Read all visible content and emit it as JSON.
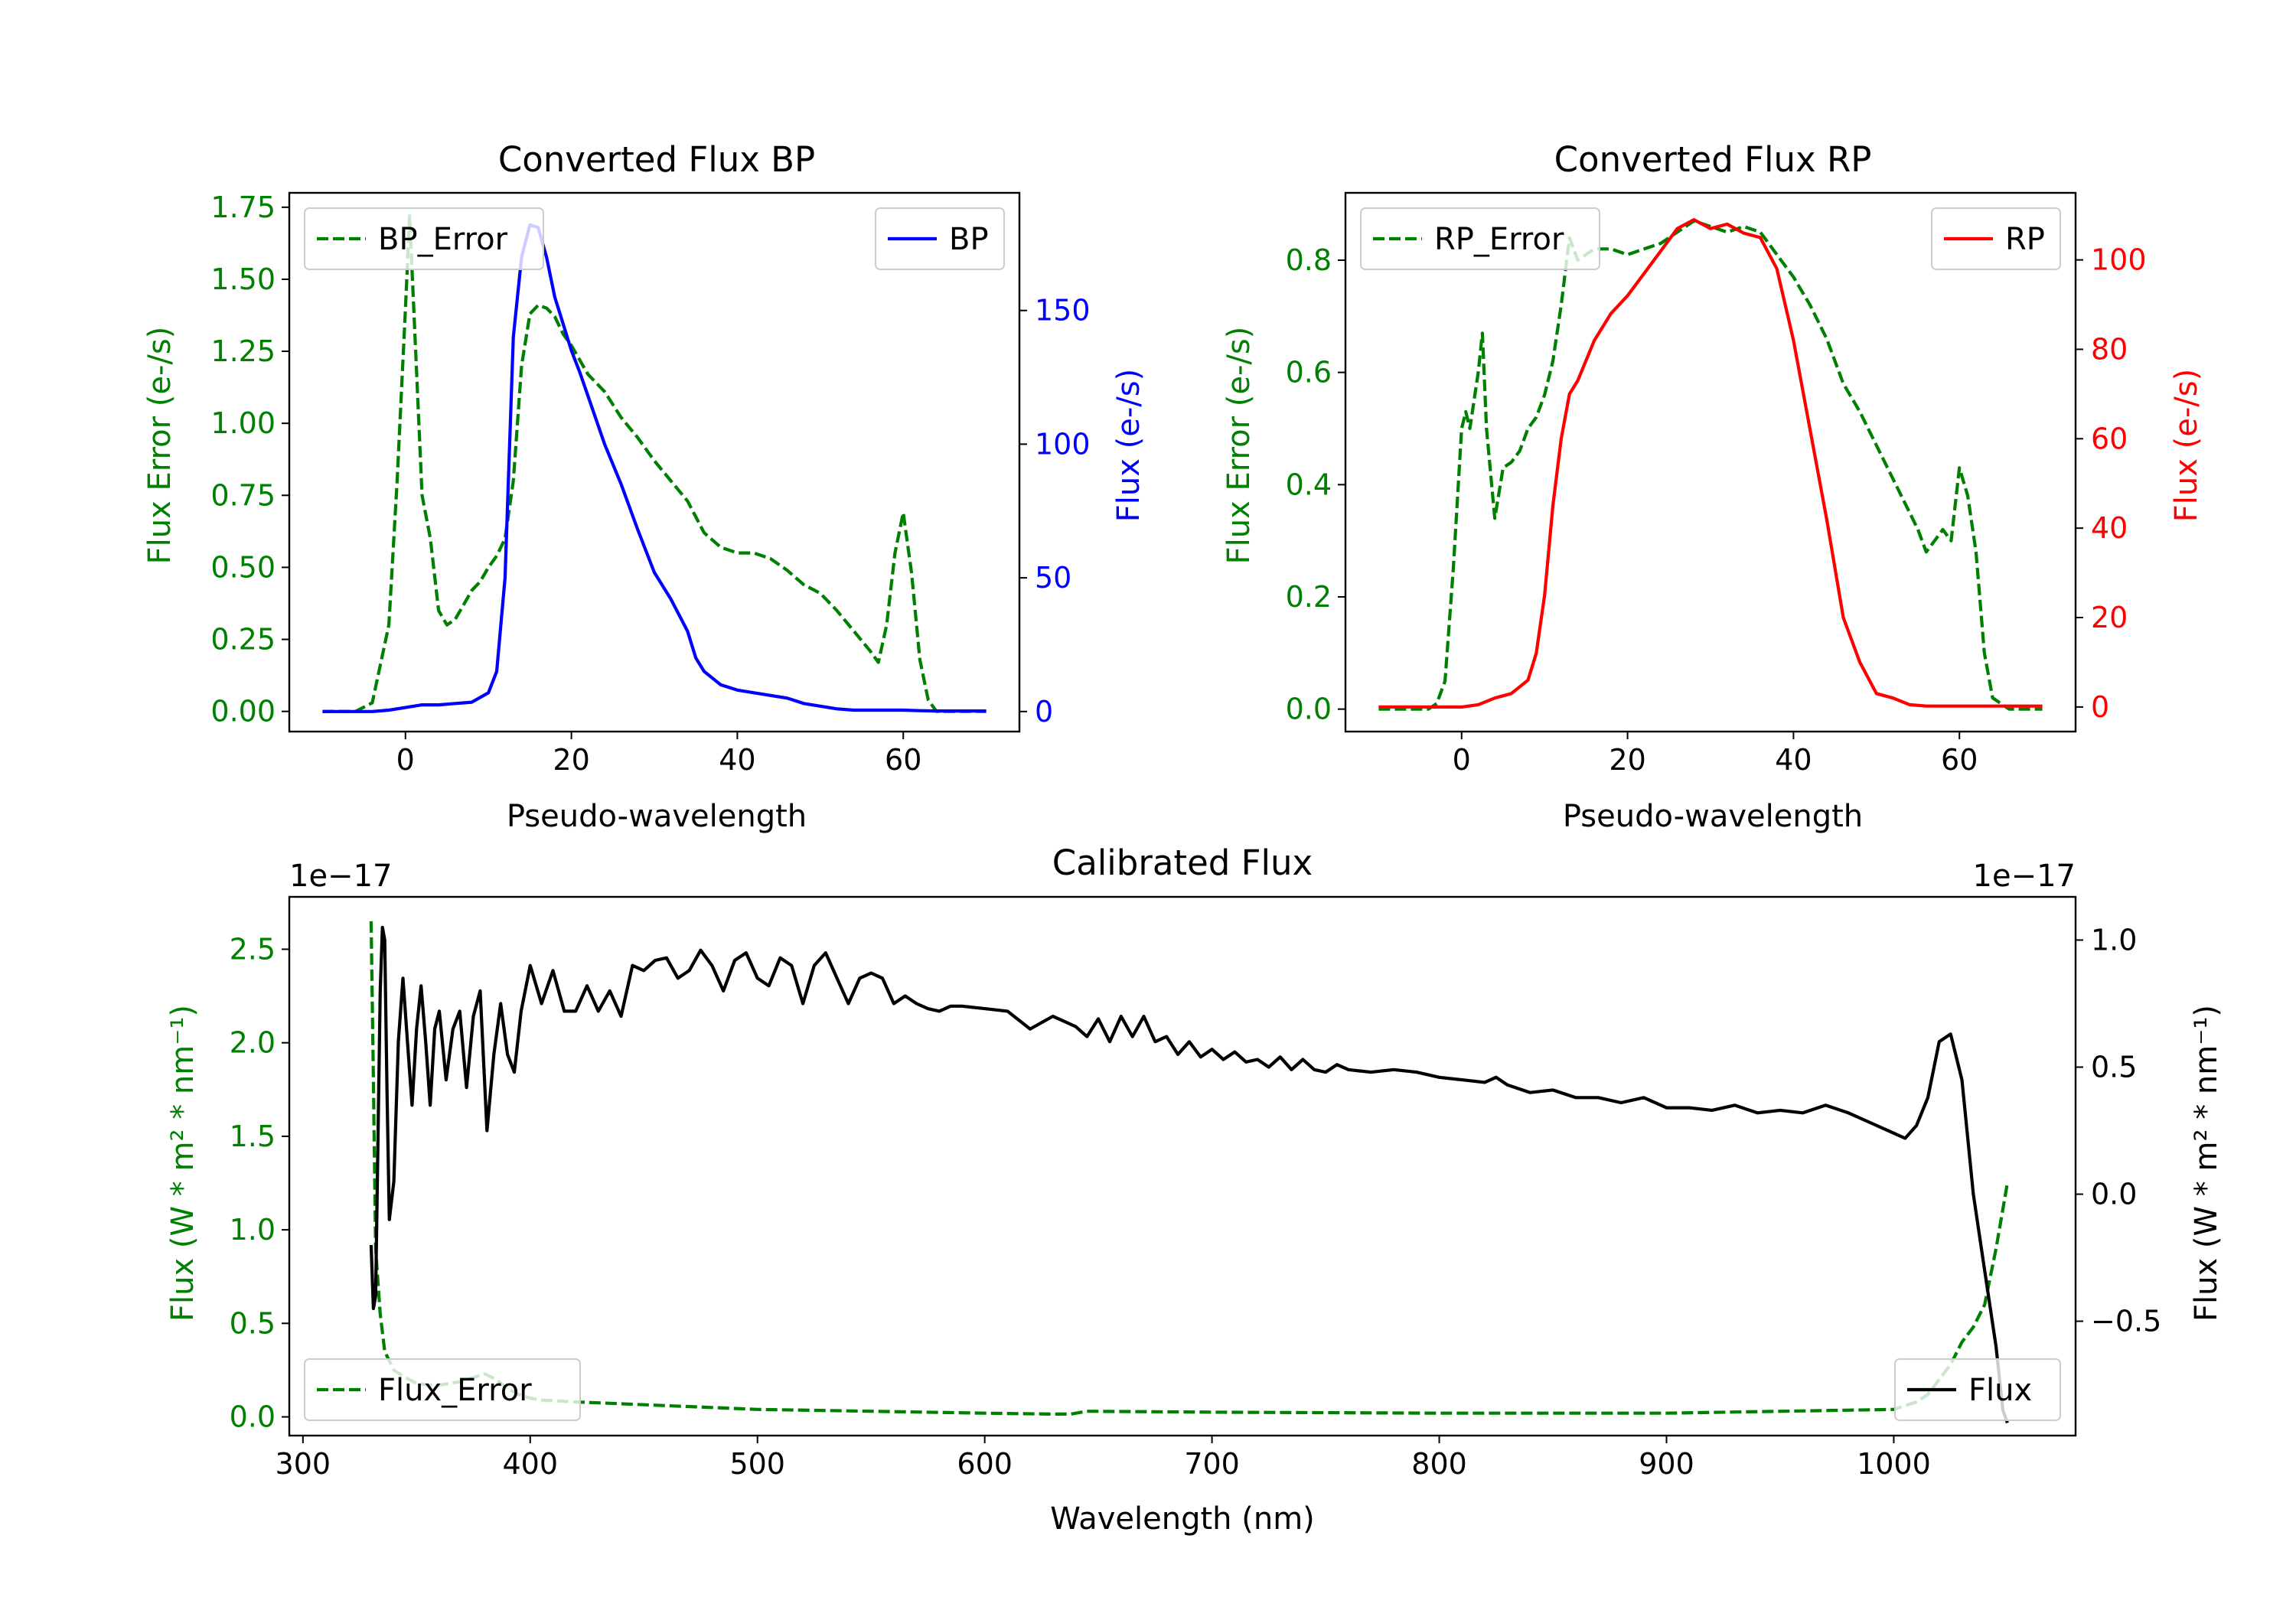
{
  "chart_data": [
    {
      "type": "line",
      "title": "Converted Flux BP",
      "xlabel": "Pseudo-wavelength",
      "ylabel_left": "Flux Error (e-/s)",
      "ylabel_right": "Flux (e-/s)",
      "xlim": [
        -14,
        74
      ],
      "ylim_left": [
        -0.07,
        1.8
      ],
      "ylim_right": [
        -7.5,
        194
      ],
      "xticks": [
        0,
        20,
        40,
        60
      ],
      "yticks_left": [
        "0.00",
        "0.25",
        "0.50",
        "0.75",
        "1.00",
        "1.25",
        "1.50",
        "1.75"
      ],
      "yticks_right": [
        "0",
        "50",
        "100",
        "150"
      ],
      "colors": {
        "left": "#008000",
        "right": "#0000ff"
      },
      "legend_left_position": "upper left",
      "legend_right_position": "upper right",
      "series": [
        {
          "name": "BP_Error",
          "axis": "left",
          "style": "dashed",
          "color": "#008000",
          "x": [
            -10,
            -6,
            -4,
            -2,
            -1,
            0,
            0.5,
            1,
            2,
            3,
            4,
            5,
            6,
            7,
            8,
            9,
            10,
            11,
            12,
            13,
            14,
            15,
            16,
            17,
            18,
            19,
            20,
            22,
            24,
            26,
            28,
            30,
            32,
            34,
            36,
            38,
            40,
            42,
            44,
            46,
            48,
            50,
            52,
            54,
            56,
            57,
            58,
            59,
            60,
            61,
            62,
            63,
            64,
            66,
            68,
            70
          ],
          "y": [
            0.0,
            0.0,
            0.03,
            0.3,
            0.8,
            1.4,
            1.72,
            1.4,
            0.75,
            0.6,
            0.35,
            0.3,
            0.32,
            0.37,
            0.42,
            0.45,
            0.5,
            0.54,
            0.6,
            0.8,
            1.2,
            1.38,
            1.41,
            1.4,
            1.37,
            1.31,
            1.27,
            1.17,
            1.11,
            1.02,
            0.95,
            0.87,
            0.8,
            0.73,
            0.62,
            0.57,
            0.55,
            0.55,
            0.53,
            0.49,
            0.44,
            0.41,
            0.35,
            0.28,
            0.21,
            0.17,
            0.3,
            0.55,
            0.69,
            0.48,
            0.18,
            0.04,
            0.0,
            0.0,
            0.0,
            0.0
          ]
        },
        {
          "name": "BP",
          "axis": "right",
          "style": "solid",
          "color": "#0000ff",
          "x": [
            -10,
            -6,
            -4,
            -2,
            0,
            2,
            4,
            6,
            8,
            10,
            11,
            12,
            13,
            14,
            15,
            16,
            17,
            18,
            19,
            20,
            21,
            22,
            24,
            26,
            28,
            30,
            32,
            34,
            35,
            36,
            38,
            40,
            42,
            44,
            46,
            48,
            50,
            52,
            54,
            56,
            58,
            60,
            62,
            64,
            66,
            68,
            70
          ],
          "y": [
            0,
            0,
            0,
            0.5,
            1.5,
            2.5,
            2.5,
            3.0,
            3.5,
            7,
            15,
            50,
            140,
            170,
            182,
            181,
            170,
            155,
            145,
            135,
            127,
            118,
            100,
            85,
            68,
            52,
            42,
            30,
            20,
            15,
            10,
            8,
            7,
            6,
            5,
            3,
            2,
            1,
            0.5,
            0.5,
            0.5,
            0.5,
            0.3,
            0.2,
            0.2,
            0.2,
            0.2
          ]
        }
      ],
      "legend": [
        "BP_Error",
        "BP"
      ]
    },
    {
      "type": "line",
      "title": "Converted Flux RP",
      "xlabel": "Pseudo-wavelength",
      "ylabel_left": "Flux Error (e-/s)",
      "ylabel_right": "Flux (e-/s)",
      "xlim": [
        -14,
        74
      ],
      "ylim_left": [
        -0.04,
        0.92
      ],
      "ylim_right": [
        -5.5,
        115
      ],
      "xticks": [
        0,
        20,
        40,
        60
      ],
      "yticks_left": [
        "0.0",
        "0.2",
        "0.4",
        "0.6",
        "0.8"
      ],
      "yticks_right": [
        "0",
        "20",
        "40",
        "60",
        "80",
        "100"
      ],
      "colors": {
        "left": "#008000",
        "right": "#ff0000"
      },
      "legend_left_position": "upper left",
      "legend_right_position": "upper right",
      "series": [
        {
          "name": "RP_Error",
          "axis": "left",
          "style": "dashed",
          "color": "#008000",
          "x": [
            -10,
            -5,
            -4,
            -3,
            -2,
            -1,
            0,
            0.5,
            1,
            1.5,
            2,
            2.5,
            3,
            4,
            5,
            6,
            7,
            8,
            9,
            10,
            11,
            12,
            13,
            14,
            16,
            18,
            20,
            22,
            24,
            26,
            28,
            30,
            32,
            34,
            36,
            38,
            40,
            42,
            44,
            46,
            48,
            50,
            52,
            54,
            55,
            56,
            57,
            58,
            59,
            60,
            61,
            62,
            63,
            64,
            66,
            68,
            70
          ],
          "y": [
            0,
            0,
            0.0,
            0.01,
            0.05,
            0.25,
            0.5,
            0.53,
            0.5,
            0.55,
            0.6,
            0.67,
            0.5,
            0.34,
            0.43,
            0.44,
            0.46,
            0.5,
            0.52,
            0.56,
            0.62,
            0.72,
            0.84,
            0.8,
            0.82,
            0.82,
            0.81,
            0.82,
            0.83,
            0.85,
            0.87,
            0.86,
            0.85,
            0.86,
            0.85,
            0.81,
            0.77,
            0.72,
            0.66,
            0.58,
            0.53,
            0.47,
            0.41,
            0.35,
            0.32,
            0.28,
            0.3,
            0.32,
            0.3,
            0.43,
            0.38,
            0.28,
            0.1,
            0.02,
            0.0,
            0.0,
            0.0
          ]
        },
        {
          "name": "RP",
          "axis": "right",
          "style": "solid",
          "color": "#ff0000",
          "x": [
            -10,
            -5,
            0,
            2,
            4,
            6,
            8,
            9,
            10,
            11,
            12,
            13,
            14,
            16,
            18,
            20,
            22,
            24,
            26,
            28,
            30,
            32,
            34,
            36,
            38,
            40,
            42,
            44,
            46,
            48,
            50,
            52,
            54,
            56,
            58,
            60,
            62,
            64,
            66,
            68,
            70
          ],
          "y": [
            0,
            0,
            0,
            0.5,
            2,
            3,
            6,
            12,
            25,
            45,
            60,
            70,
            73,
            82,
            88,
            92,
            97,
            102,
            107,
            109,
            107,
            108,
            106,
            105,
            98,
            82,
            62,
            42,
            20,
            10,
            3,
            2,
            0.5,
            0.2,
            0.2,
            0.2,
            0.2,
            0.2,
            0.2,
            0.2,
            0.2
          ]
        }
      ],
      "legend": [
        "RP_Error",
        "RP"
      ]
    },
    {
      "type": "line",
      "title": "Calibrated Flux",
      "xlabel": "Wavelength (nm)",
      "ylabel_left": "Flux (W * m² * nm⁻¹)",
      "ylabel_right": "Flux (W * m² * nm⁻¹)",
      "offset_left": "1e−17",
      "offset_right": "1e−17",
      "xlim": [
        294,
        1080
      ],
      "ylim_left": [
        -0.1,
        2.78
      ],
      "ylim_right": [
        -0.95,
        1.17
      ],
      "xticks": [
        300,
        400,
        500,
        600,
        700,
        800,
        900,
        1000
      ],
      "yticks_left": [
        "0.0",
        "0.5",
        "1.0",
        "1.5",
        "2.0",
        "2.5"
      ],
      "yticks_right": [
        "−0.5",
        "0.0",
        "0.5",
        "1.0"
      ],
      "colors": {
        "left": "#008000",
        "right": "#000000"
      },
      "legend_left_position": "lower left",
      "legend_right_position": "lower right",
      "series": [
        {
          "name": "Flux_Error",
          "axis": "left",
          "style": "dashed",
          "color": "#008000",
          "x": [
            330,
            331,
            332,
            334,
            336,
            340,
            345,
            350,
            355,
            360,
            365,
            370,
            375,
            380,
            385,
            390,
            395,
            400,
            405,
            420,
            440,
            460,
            480,
            500,
            550,
            600,
            630,
            638,
            645,
            700,
            800,
            900,
            1000,
            1005,
            1010,
            1015,
            1020,
            1025,
            1030,
            1035,
            1040,
            1045,
            1050
          ],
          "y": [
            2.65,
            1.8,
            0.9,
            0.55,
            0.35,
            0.25,
            0.21,
            0.18,
            0.17,
            0.17,
            0.18,
            0.19,
            0.21,
            0.23,
            0.2,
            0.15,
            0.12,
            0.1,
            0.09,
            0.08,
            0.07,
            0.06,
            0.05,
            0.04,
            0.03,
            0.02,
            0.015,
            0.015,
            0.03,
            0.025,
            0.02,
            0.02,
            0.04,
            0.06,
            0.08,
            0.12,
            0.2,
            0.28,
            0.4,
            0.48,
            0.6,
            0.9,
            1.25
          ]
        },
        {
          "name": "Flux",
          "axis": "right",
          "style": "solid",
          "color": "#000000",
          "x": [
            330,
            331,
            332,
            333,
            334,
            335,
            336,
            337,
            338,
            340,
            342,
            344,
            346,
            348,
            350,
            352,
            354,
            356,
            358,
            360,
            363,
            366,
            369,
            372,
            375,
            378,
            381,
            384,
            387,
            390,
            393,
            396,
            400,
            405,
            410,
            415,
            420,
            425,
            430,
            435,
            440,
            445,
            450,
            455,
            460,
            465,
            470,
            475,
            480,
            485,
            490,
            495,
            500,
            505,
            510,
            515,
            520,
            525,
            530,
            535,
            540,
            545,
            550,
            555,
            560,
            565,
            570,
            575,
            580,
            585,
            590,
            600,
            610,
            620,
            630,
            640,
            645,
            650,
            655,
            660,
            665,
            670,
            675,
            680,
            685,
            690,
            695,
            700,
            705,
            710,
            715,
            720,
            725,
            730,
            735,
            740,
            745,
            750,
            755,
            760,
            770,
            780,
            790,
            800,
            810,
            820,
            825,
            830,
            840,
            850,
            860,
            870,
            880,
            890,
            900,
            910,
            920,
            930,
            940,
            950,
            960,
            970,
            980,
            990,
            1000,
            1005,
            1010,
            1015,
            1020,
            1025,
            1030,
            1035,
            1040,
            1045,
            1048,
            1050
          ],
          "y": [
            -0.2,
            -0.45,
            -0.4,
            0.2,
            0.8,
            1.05,
            1.0,
            0.4,
            -0.1,
            0.05,
            0.6,
            0.85,
            0.6,
            0.35,
            0.65,
            0.82,
            0.6,
            0.35,
            0.65,
            0.72,
            0.45,
            0.65,
            0.72,
            0.42,
            0.7,
            0.8,
            0.25,
            0.55,
            0.75,
            0.55,
            0.48,
            0.72,
            0.9,
            0.75,
            0.88,
            0.72,
            0.72,
            0.82,
            0.72,
            0.8,
            0.7,
            0.9,
            0.88,
            0.92,
            0.93,
            0.85,
            0.88,
            0.96,
            0.9,
            0.8,
            0.92,
            0.95,
            0.85,
            0.82,
            0.93,
            0.9,
            0.75,
            0.9,
            0.95,
            0.85,
            0.75,
            0.85,
            0.87,
            0.85,
            0.75,
            0.78,
            0.75,
            0.73,
            0.72,
            0.74,
            0.74,
            0.73,
            0.72,
            0.65,
            0.7,
            0.66,
            0.62,
            0.69,
            0.6,
            0.7,
            0.62,
            0.7,
            0.6,
            0.62,
            0.55,
            0.6,
            0.54,
            0.57,
            0.53,
            0.56,
            0.52,
            0.53,
            0.5,
            0.54,
            0.49,
            0.53,
            0.49,
            0.48,
            0.51,
            0.49,
            0.48,
            0.49,
            0.48,
            0.46,
            0.45,
            0.44,
            0.46,
            0.43,
            0.4,
            0.41,
            0.38,
            0.38,
            0.36,
            0.38,
            0.34,
            0.34,
            0.33,
            0.35,
            0.32,
            0.33,
            0.32,
            0.35,
            0.32,
            0.28,
            0.24,
            0.22,
            0.27,
            0.38,
            0.6,
            0.63,
            0.45,
            0.0,
            -0.3,
            -0.6,
            -0.85,
            -0.9
          ]
        }
      ],
      "legend": [
        "Flux",
        "Flux_Error"
      ]
    }
  ]
}
